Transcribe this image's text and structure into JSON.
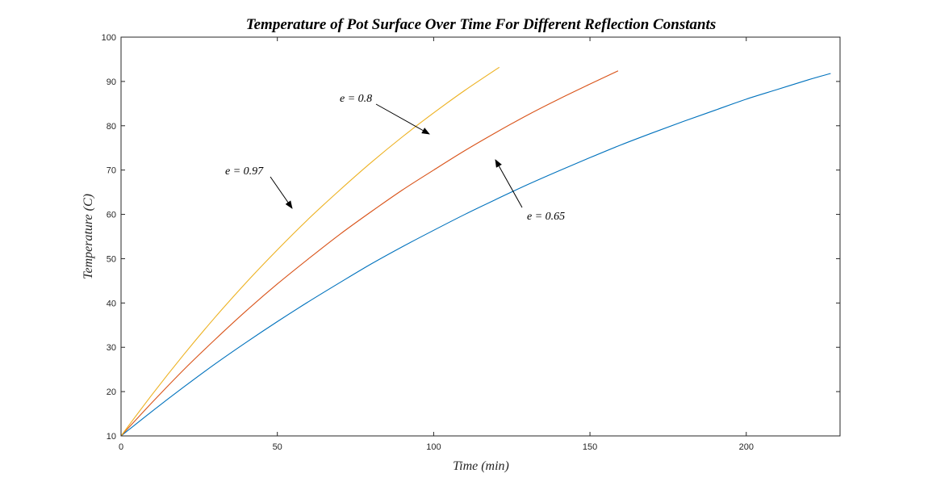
{
  "chart_data": {
    "type": "line",
    "title": "Temperature of Pot Surface Over Time For Different Reflection Constants",
    "xlabel": "Time (min)",
    "ylabel": "Temperature (C)",
    "xlim": [
      0,
      230
    ],
    "ylim": [
      10,
      100
    ],
    "xticks": [
      0,
      50,
      100,
      150,
      200
    ],
    "yticks": [
      10,
      20,
      30,
      40,
      50,
      60,
      70,
      80,
      90,
      100
    ],
    "grid": false,
    "legend": "none",
    "series": [
      {
        "color": "#0072BD",
        "x": [
          0,
          10,
          20,
          30,
          40,
          50,
          60,
          70,
          80,
          90,
          100,
          110,
          120,
          130,
          140,
          150,
          160,
          170,
          180,
          190,
          200,
          210,
          220,
          227
        ],
        "y": [
          10,
          15.6,
          21.0,
          26.2,
          31.1,
          35.8,
          40.3,
          44.6,
          48.8,
          52.7,
          56.4,
          60.0,
          63.4,
          66.7,
          69.8,
          72.8,
          75.7,
          78.4,
          81.0,
          83.5,
          86.0,
          88.2,
          90.4,
          91.8
        ]
      },
      {
        "color": "#D95319",
        "x": [
          0,
          10,
          20,
          30,
          40,
          50,
          60,
          70,
          80,
          90,
          100,
          110,
          120,
          130,
          140,
          150,
          159
        ],
        "y": [
          10,
          17.6,
          24.9,
          31.7,
          38.2,
          44.3,
          50.0,
          55.5,
          60.6,
          65.5,
          70.0,
          74.4,
          78.5,
          82.4,
          86.0,
          89.4,
          92.4
        ]
      },
      {
        "color": "#EDB120",
        "x": [
          0,
          10,
          20,
          30,
          40,
          50,
          60,
          70,
          80,
          90,
          100,
          110,
          121
        ],
        "y": [
          10,
          19.4,
          28.3,
          36.7,
          44.6,
          52.0,
          59.0,
          65.5,
          71.7,
          77.5,
          82.9,
          88.0,
          93.2
        ]
      }
    ],
    "annotations": [
      {
        "text": "e = 0.97",
        "arrow_to": [
          55,
          60
        ]
      },
      {
        "text": "e = 0.8",
        "arrow_to": [
          100,
          76.5
        ]
      },
      {
        "text": "e = 0.65",
        "arrow_to": [
          119,
          73
        ]
      }
    ]
  }
}
